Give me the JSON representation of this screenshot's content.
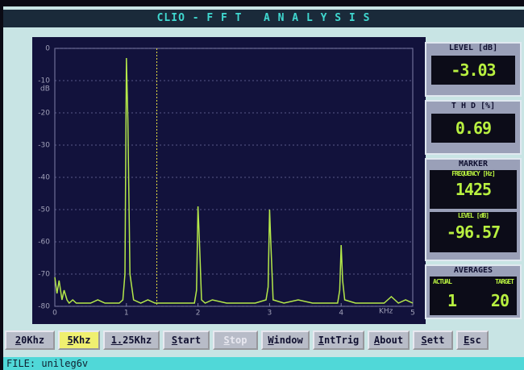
{
  "header": {
    "title": "CLIO - F F T   A N A L Y S I S"
  },
  "chart_data": {
    "type": "line",
    "y_label": "dB",
    "x_label": "KHz",
    "color": "#b4e84a",
    "x": [
      0,
      0.03,
      0.06,
      0.1,
      0.13,
      0.17,
      0.2,
      0.25,
      0.3,
      0.4,
      0.5,
      0.6,
      0.7,
      0.8,
      0.9,
      0.95,
      0.98,
      1.0,
      1.02,
      1.05,
      1.1,
      1.2,
      1.3,
      1.4,
      1.5,
      1.6,
      1.8,
      1.95,
      1.98,
      2.0,
      2.02,
      2.05,
      2.1,
      2.2,
      2.4,
      2.6,
      2.8,
      2.95,
      2.98,
      3.0,
      3.02,
      3.05,
      3.2,
      3.4,
      3.6,
      3.8,
      3.95,
      3.98,
      4.0,
      4.02,
      4.05,
      4.2,
      4.4,
      4.6,
      4.7,
      4.8,
      4.9,
      5.0
    ],
    "values": [
      -71,
      -76,
      -72,
      -78,
      -75,
      -78,
      -79,
      -78,
      -79,
      -79,
      -79,
      -78,
      -79,
      -79,
      -79,
      -78,
      -70,
      -3,
      -22,
      -70,
      -78,
      -79,
      -78,
      -79,
      -79,
      -79,
      -79,
      -79,
      -75,
      -49,
      -60,
      -78,
      -79,
      -78,
      -79,
      -79,
      -79,
      -78,
      -74,
      -50,
      -62,
      -78,
      -79,
      -78,
      -79,
      -79,
      -79,
      -75,
      -61,
      -72,
      -78,
      -79,
      -79,
      -79,
      -77,
      -79,
      -78,
      -79
    ],
    "xlim": [
      0,
      5
    ],
    "xticks": [
      0,
      1,
      2,
      3,
      4,
      5
    ],
    "ylim": [
      -80,
      0
    ],
    "yticks": [
      0,
      -10,
      -20,
      -30,
      -40,
      -50,
      -60,
      -70,
      -80
    ],
    "grid": true,
    "marker_x": 1.425
  },
  "panels": {
    "level": {
      "title": "LEVEL [dB]",
      "value": "-3.03"
    },
    "thd": {
      "title": "T H D [%]",
      "value": "0.69"
    },
    "marker": {
      "title": "MARKER",
      "freq_label": "FREQUENCY [Hz]",
      "freq": "1425",
      "level_label": "LEVEL [dB]",
      "level": "-96.57"
    },
    "averages": {
      "title": "AVERAGES",
      "actual_label": "ACTUAL",
      "target_label": "TARGET",
      "actual": "1",
      "target": "20"
    }
  },
  "buttons": [
    "20Khz",
    "5Khz",
    "1.25Khz",
    "Start",
    "Stop",
    "Window",
    "IntTrig",
    "About",
    "Sett",
    "Esc"
  ],
  "status": "FILE: unileg6v"
}
